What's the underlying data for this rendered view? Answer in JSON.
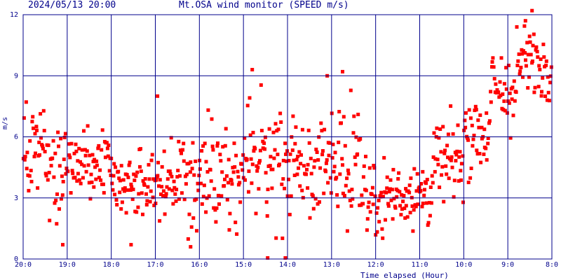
{
  "header": {
    "timestamp": "2024/05/13 20:00",
    "title": "Mt.OSA wind monitor (SPEED m/s)"
  },
  "chart_data": {
    "type": "scatter",
    "title": "Mt.OSA wind monitor (SPEED m/s)",
    "ylabel": "m/s",
    "xlabel": "Time elapsed (Hour)",
    "ylim": [
      0,
      12
    ],
    "xlim": [
      0,
      12
    ],
    "x_reversed": true,
    "y_ticks": [
      "0",
      "3",
      "6",
      "9",
      "12"
    ],
    "x_ticks": [
      "20:0",
      "19:0",
      "18:0",
      "17:0",
      "16:0",
      "15:0",
      "14:0",
      "13:0",
      "12:0",
      "11:0",
      "10:0",
      "9:0",
      "8:0"
    ],
    "grid": true,
    "colors": {
      "points": "#ff0000",
      "grid": "#00008b",
      "text": "#00008b"
    },
    "segments": [
      {
        "from": 0.0,
        "to": 0.5,
        "mean": 5.3,
        "spread": 1.6
      },
      {
        "from": 0.5,
        "to": 1.0,
        "mean": 4.3,
        "spread": 1.7
      },
      {
        "from": 1.0,
        "to": 2.0,
        "mean": 4.6,
        "spread": 1.5
      },
      {
        "from": 2.0,
        "to": 3.0,
        "mean": 3.7,
        "spread": 1.6
      },
      {
        "from": 3.0,
        "to": 4.0,
        "mean": 3.9,
        "spread": 1.7
      },
      {
        "from": 4.0,
        "to": 5.0,
        "mean": 4.3,
        "spread": 1.9
      },
      {
        "from": 5.0,
        "to": 6.0,
        "mean": 4.6,
        "spread": 2.1
      },
      {
        "from": 6.0,
        "to": 7.0,
        "mean": 4.5,
        "spread": 1.9
      },
      {
        "from": 7.0,
        "to": 7.7,
        "mean": 4.9,
        "spread": 2.1
      },
      {
        "from": 7.7,
        "to": 8.5,
        "mean": 3.1,
        "spread": 1.6
      },
      {
        "from": 8.5,
        "to": 9.3,
        "mean": 3.3,
        "spread": 1.5
      },
      {
        "from": 9.3,
        "to": 10.0,
        "mean": 4.8,
        "spread": 1.5
      },
      {
        "from": 10.0,
        "to": 10.6,
        "mean": 6.3,
        "spread": 1.6
      },
      {
        "from": 10.6,
        "to": 11.2,
        "mean": 8.2,
        "spread": 1.6
      },
      {
        "from": 11.2,
        "to": 12.0,
        "mean": 9.6,
        "spread": 1.4
      }
    ],
    "point_count": 780,
    "peaks": [
      {
        "x": 11.55,
        "y": 12.2
      },
      {
        "x": 11.4,
        "y": 11.7
      },
      {
        "x": 5.2,
        "y": 9.3
      },
      {
        "x": 7.25,
        "y": 9.2
      },
      {
        "x": 6.9,
        "y": 9.0
      },
      {
        "x": 3.05,
        "y": 8.0
      },
      {
        "x": 5.55,
        "y": 0.05
      },
      {
        "x": 5.95,
        "y": 0.05
      },
      {
        "x": 0.9,
        "y": 0.7
      },
      {
        "x": 2.45,
        "y": 0.7
      },
      {
        "x": 3.8,
        "y": 0.6
      }
    ]
  }
}
